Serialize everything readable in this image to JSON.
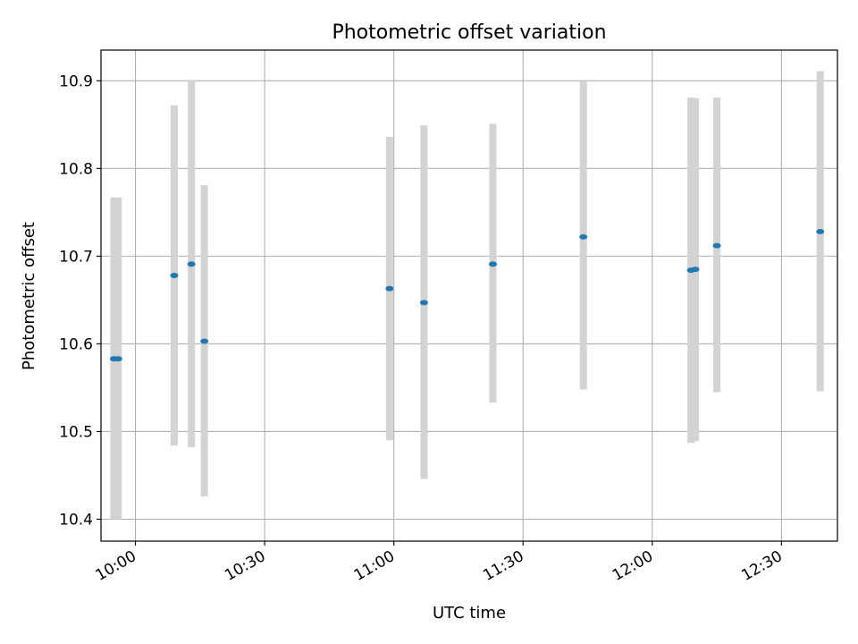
{
  "chart_data": {
    "type": "scatter",
    "title": "Photometric offset variation",
    "xlabel": "UTC time",
    "ylabel": "Photometric offset",
    "x_axis_kind": "time",
    "xlim": [
      "09:52",
      "12:43"
    ],
    "ylim": [
      10.375,
      10.935
    ],
    "x_ticks": [
      "10:00",
      "10:30",
      "11:00",
      "11:30",
      "12:00",
      "12:30"
    ],
    "y_ticks": [
      "10.4",
      "10.5",
      "10.6",
      "10.7",
      "10.8",
      "10.9"
    ],
    "grid": true,
    "legend": "none",
    "series": [
      {
        "marker_color": "#1f77b4",
        "errorbar_color": "#d3d3d3",
        "points": [
          {
            "x": "09:55",
            "y": 10.583,
            "ylow": 10.4,
            "yhigh": 10.767
          },
          {
            "x": "09:56",
            "y": 10.583,
            "ylow": 10.4,
            "yhigh": 10.767
          },
          {
            "x": "10:09",
            "y": 10.678,
            "ylow": 10.484,
            "yhigh": 10.872
          },
          {
            "x": "10:13",
            "y": 10.691,
            "ylow": 10.482,
            "yhigh": 10.901
          },
          {
            "x": "10:16",
            "y": 10.603,
            "ylow": 10.426,
            "yhigh": 10.781
          },
          {
            "x": "10:59",
            "y": 10.663,
            "ylow": 10.49,
            "yhigh": 10.836
          },
          {
            "x": "11:07",
            "y": 10.647,
            "ylow": 10.446,
            "yhigh": 10.849
          },
          {
            "x": "11:23",
            "y": 10.691,
            "ylow": 10.533,
            "yhigh": 10.851
          },
          {
            "x": "11:44",
            "y": 10.722,
            "ylow": 10.548,
            "yhigh": 10.899
          },
          {
            "x": "12:09",
            "y": 10.684,
            "ylow": 10.487,
            "yhigh": 10.881
          },
          {
            "x": "12:10",
            "y": 10.685,
            "ylow": 10.489,
            "yhigh": 10.88
          },
          {
            "x": "12:15",
            "y": 10.712,
            "ylow": 10.545,
            "yhigh": 10.881
          },
          {
            "x": "12:39",
            "y": 10.728,
            "ylow": 10.546,
            "yhigh": 10.911
          }
        ]
      }
    ]
  }
}
